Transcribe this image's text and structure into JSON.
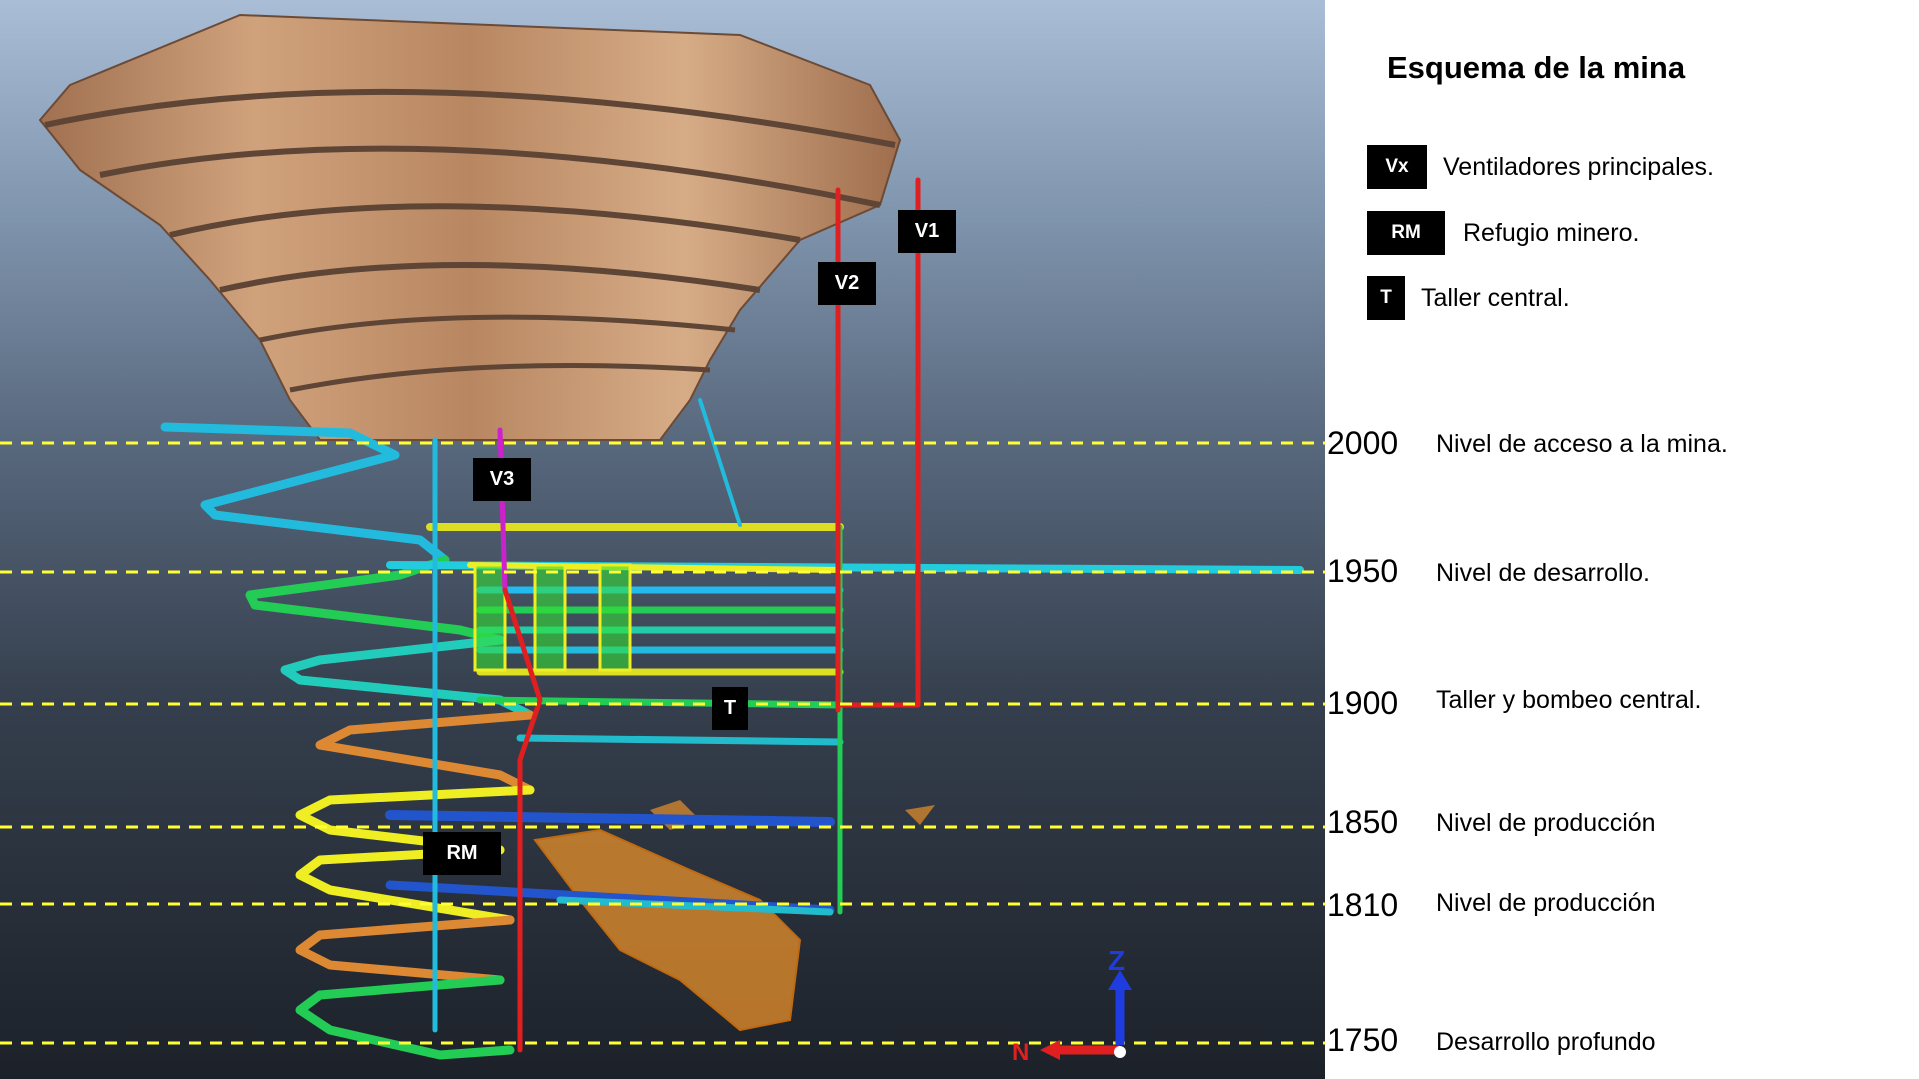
{
  "legend": {
    "title": "Esquema de la mina",
    "items": [
      {
        "tag": "Vx",
        "text": "Ventiladores principales."
      },
      {
        "tag": "RM",
        "text": "Refugio minero."
      },
      {
        "tag": "T",
        "text": "Taller central."
      }
    ]
  },
  "levels": [
    {
      "value": "2000",
      "label": "Nivel de acceso a la mina."
    },
    {
      "value": "1950",
      "label": "Nivel de desarrollo."
    },
    {
      "value": "1900",
      "label": "Taller y bombeo central."
    },
    {
      "value": "1850",
      "label": "Nivel de producción"
    },
    {
      "value": "1810",
      "label": "Nivel de producción"
    },
    {
      "value": "1750",
      "label": "Desarrollo profundo"
    }
  ],
  "markers": {
    "v1": "V1",
    "v2": "V2",
    "v3": "V3",
    "t": "T",
    "rm": "RM"
  },
  "axes": {
    "z": "Z",
    "n": "N"
  },
  "colors": {
    "level_line": "#ffff33",
    "shaft_red": "#e02020",
    "shaft_magenta": "#cc22cc",
    "pit": "#b88762",
    "ore_body": "#e8902a"
  }
}
